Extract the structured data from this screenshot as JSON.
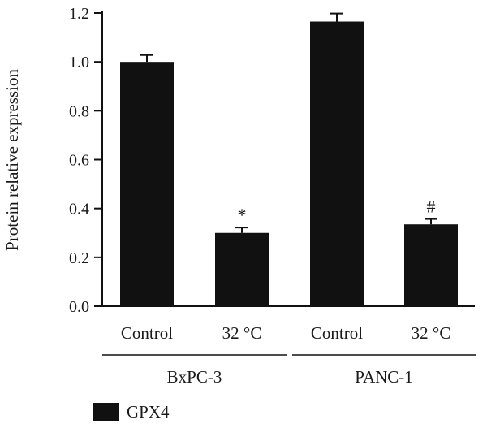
{
  "chart_data": {
    "type": "bar",
    "ylabel": "Protein relative expression",
    "ylim": [
      0,
      1.2
    ],
    "yticks": [
      "0.0",
      "0.2",
      "0.4",
      "0.6",
      "0.8",
      "1.0",
      "1.2"
    ],
    "bar_color": "#111111",
    "categories": [
      "Control",
      "32 °C",
      "Control",
      "32 °C"
    ],
    "groups": [
      {
        "label": "BxPC-3",
        "category_indices": [
          0,
          1
        ]
      },
      {
        "label": "PANC-1",
        "category_indices": [
          2,
          3
        ]
      }
    ],
    "series": [
      {
        "name": "GPX4",
        "values": [
          1.0,
          0.3,
          1.165,
          0.335
        ],
        "errors": [
          0.028,
          0.022,
          0.033,
          0.022
        ],
        "annotations": [
          "",
          "*",
          "",
          "#"
        ]
      }
    ],
    "legend_placement": "bottom-left",
    "grid": false
  }
}
